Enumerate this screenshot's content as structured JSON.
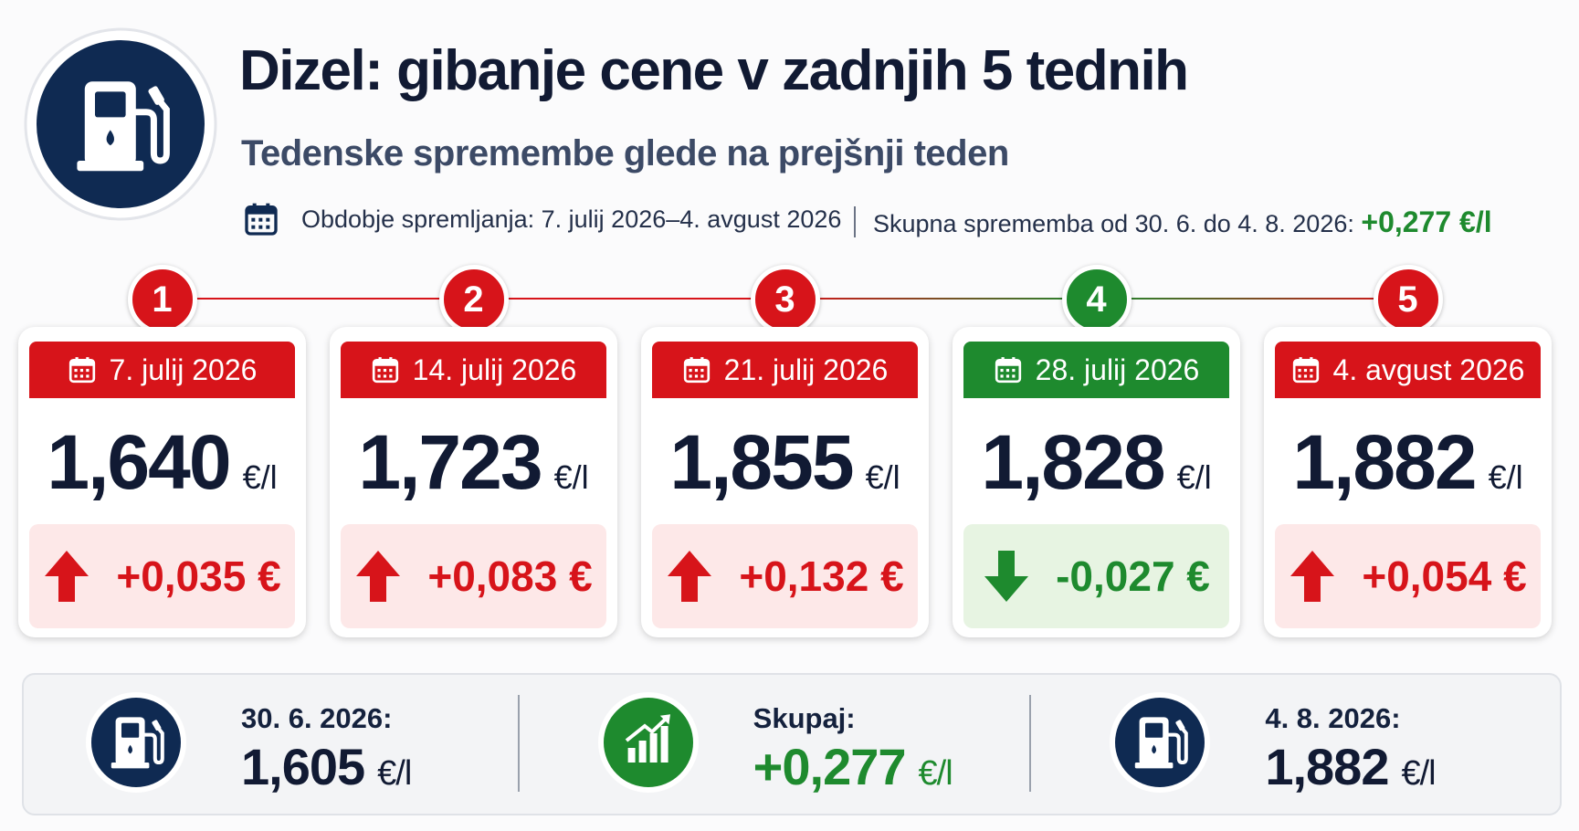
{
  "header": {
    "title": "Dizel: gibanje cene v zadnjih 5 tednih",
    "subtitle": "Tedenske spremembe glede na prejšnji teden",
    "period": "Obdobje spremljanja: 7. julij 2026–4. avgust 2026",
    "total_label": "Skupna sprememba od 30. 6. do 4. 8. 2026:",
    "total_value": "+0,277 €/l"
  },
  "weeks": [
    {
      "number": "1",
      "date": "7. julij 2026",
      "price": "1,640",
      "unit": "€/l",
      "change": "+0,035 €",
      "direction": "up"
    },
    {
      "number": "2",
      "date": "14. julij 2026",
      "price": "1,723",
      "unit": "€/l",
      "change": "+0,083 €",
      "direction": "up"
    },
    {
      "number": "3",
      "date": "21. julij 2026",
      "price": "1,855",
      "unit": "€/l",
      "change": "+0,132 €",
      "direction": "up"
    },
    {
      "number": "4",
      "date": "28. julij 2026",
      "price": "1,828",
      "unit": "€/l",
      "change": "-0,027 €",
      "direction": "down"
    },
    {
      "number": "5",
      "date": "4. avgust 2026",
      "price": "1,882",
      "unit": "€/l",
      "change": "+0,054 €",
      "direction": "up"
    }
  ],
  "summary": [
    {
      "label": "30. 6. 2026:",
      "value": "1,605",
      "unit": "€/l",
      "icon": "pump",
      "tone": "neutral"
    },
    {
      "label": "Skupaj:",
      "value": "+0,277",
      "unit": "€/l",
      "icon": "chart",
      "tone": "up"
    },
    {
      "label": "4. 8. 2026:",
      "value": "1,882",
      "unit": "€/l",
      "icon": "pump",
      "tone": "neutral"
    }
  ]
}
